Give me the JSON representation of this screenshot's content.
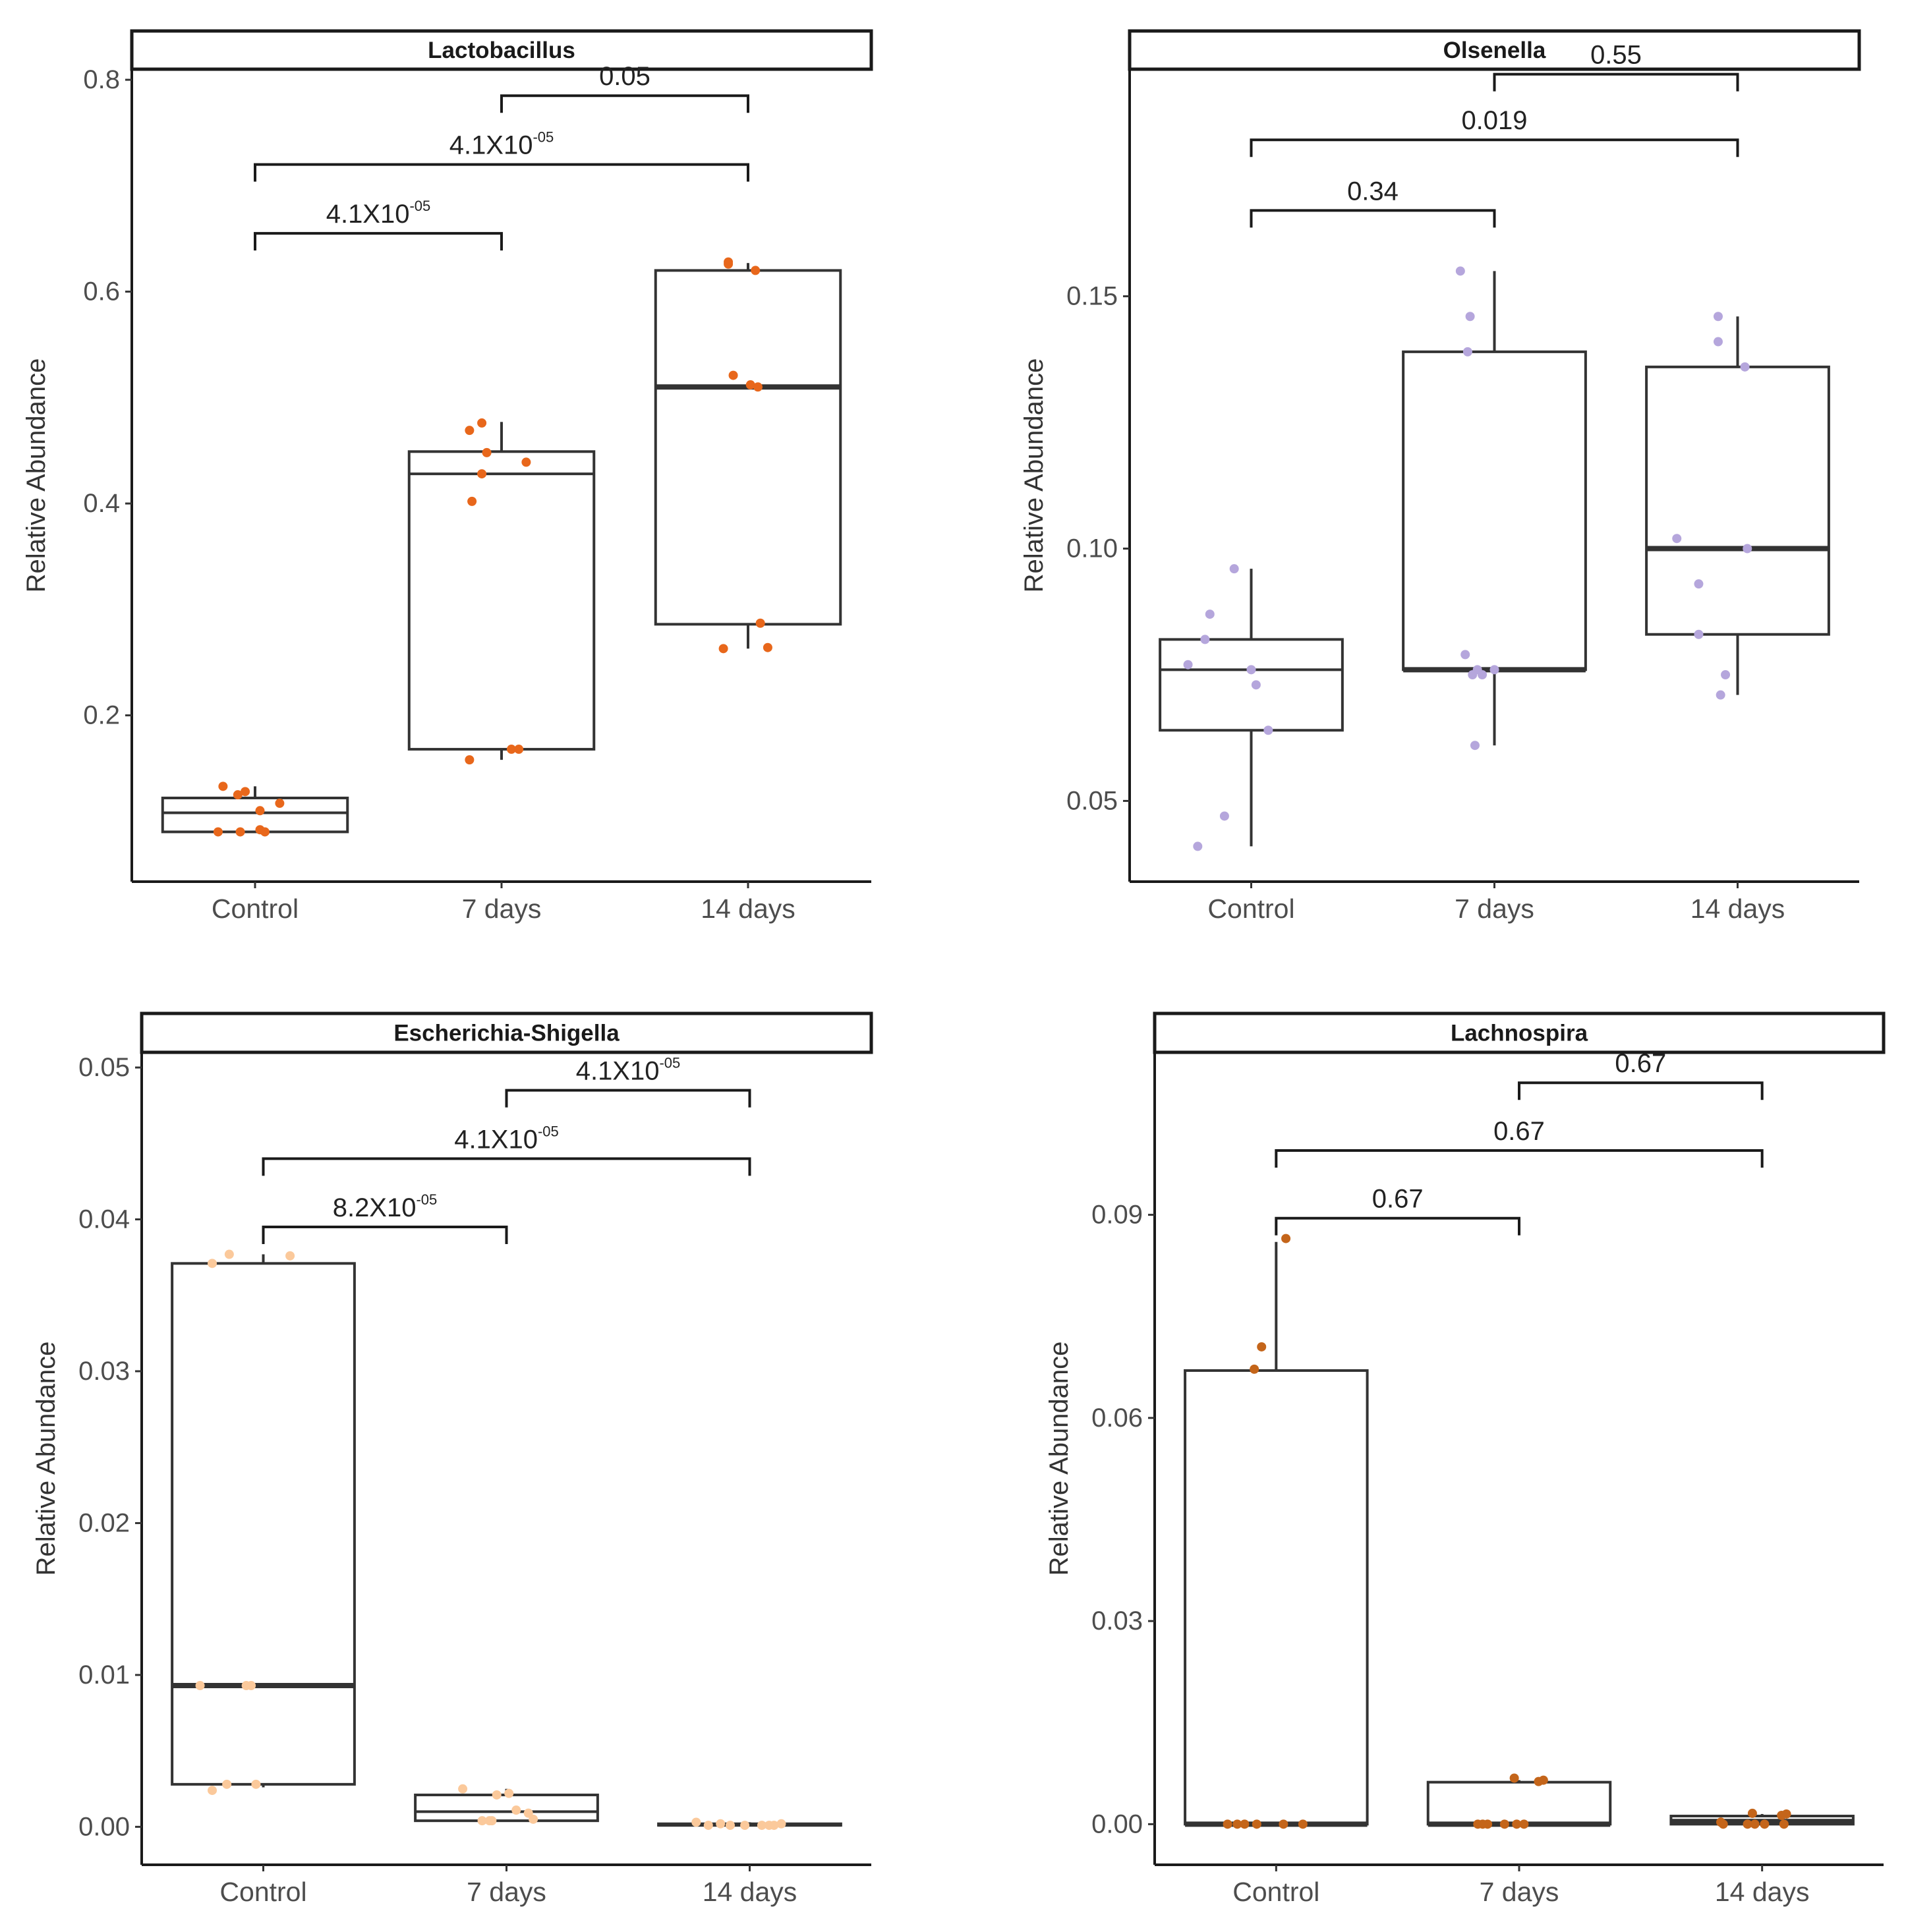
{
  "figure": {
    "background": "#ffffff"
  },
  "chart_data": [
    {
      "type": "box",
      "title": "Lactobacillus",
      "ylabel": "Relative Abundance",
      "xlabel": "",
      "categories": [
        "Control",
        "7 days",
        "14 days"
      ],
      "ylim": [
        0.043,
        0.81
      ],
      "yticks": [
        0.2,
        0.4,
        0.6,
        0.8
      ],
      "ytick_labels": [
        "0.2",
        "0.4",
        "0.6",
        "0.8"
      ],
      "point_color": "#e8671b",
      "boxes": [
        {
          "category": "Control",
          "q1": 0.09,
          "median": 0.108,
          "q3": 0.122,
          "whisker_low": 0.09,
          "whisker_high": 0.133,
          "median_bold": false
        },
        {
          "category": "7 days",
          "q1": 0.168,
          "median": 0.428,
          "q3": 0.449,
          "whisker_low": 0.158,
          "whisker_high": 0.477,
          "median_bold": false
        },
        {
          "category": "14 days",
          "q1": 0.286,
          "median": 0.51,
          "q3": 0.62,
          "whisker_low": 0.263,
          "whisker_high": 0.627,
          "median_bold": true
        }
      ],
      "points": [
        {
          "category": "Control",
          "values": [
            0.133,
            0.125,
            0.128,
            0.11,
            0.117,
            0.09,
            0.09,
            0.092,
            0.09
          ]
        },
        {
          "category": "7 days",
          "values": [
            0.469,
            0.476,
            0.448,
            0.439,
            0.428,
            0.402,
            0.158,
            0.168,
            0.168
          ]
        },
        {
          "category": "14 days",
          "values": [
            0.628,
            0.626,
            0.62,
            0.521,
            0.512,
            0.51,
            0.287,
            0.263,
            0.264
          ]
        }
      ],
      "jitter": [
        [
          -0.13,
          -0.07,
          -0.04,
          0.02,
          0.1,
          -0.15,
          -0.06,
          0.02,
          0.04
        ],
        [
          -0.13,
          -0.08,
          -0.06,
          0.1,
          -0.08,
          -0.12,
          -0.13,
          0.04,
          0.07
        ],
        [
          -0.08,
          -0.08,
          0.03,
          -0.06,
          0.01,
          0.04,
          0.05,
          -0.1,
          0.08
        ]
      ],
      "comparisons": [
        {
          "from": "Control",
          "to": "7 days",
          "y": 0.655,
          "label": "4.1X10",
          "exponent": "-05"
        },
        {
          "from": "Control",
          "to": "14 days",
          "y": 0.72,
          "label": "4.1X10",
          "exponent": "-05"
        },
        {
          "from": "7 days",
          "to": "14 days",
          "y": 0.785,
          "label": "0.05",
          "exponent": ""
        }
      ]
    },
    {
      "type": "box",
      "title": "Olsenella",
      "ylabel": "Relative Abundance",
      "xlabel": "",
      "categories": [
        "Control",
        "7 days",
        "14 days"
      ],
      "ylim": [
        0.034,
        0.195
      ],
      "yticks": [
        0.05,
        0.1,
        0.15
      ],
      "ytick_labels": [
        "0.05",
        "0.10",
        "0.15"
      ],
      "point_color": "#b5a6dc",
      "boxes": [
        {
          "category": "Control",
          "q1": 0.064,
          "median": 0.076,
          "q3": 0.082,
          "whisker_low": 0.041,
          "whisker_high": 0.096,
          "median_bold": false
        },
        {
          "category": "7 days",
          "q1": 0.076,
          "median": 0.076,
          "q3": 0.139,
          "whisker_low": 0.061,
          "whisker_high": 0.155,
          "median_bold": true
        },
        {
          "category": "14 days",
          "q1": 0.083,
          "median": 0.1,
          "q3": 0.136,
          "whisker_low": 0.071,
          "whisker_high": 0.146,
          "median_bold": true
        }
      ],
      "points": [
        {
          "category": "Control",
          "values": [
            0.096,
            0.087,
            0.082,
            0.077,
            0.076,
            0.073,
            0.064,
            0.047,
            0.041
          ]
        },
        {
          "category": "7 days",
          "values": [
            0.155,
            0.146,
            0.139,
            0.079,
            0.076,
            0.075,
            0.075,
            0.076,
            0.061
          ]
        },
        {
          "category": "14 days",
          "values": [
            0.146,
            0.141,
            0.136,
            0.102,
            0.1,
            0.093,
            0.083,
            0.075,
            0.071
          ]
        }
      ],
      "jitter": [
        [
          -0.07,
          -0.17,
          -0.19,
          -0.26,
          0.0,
          0.02,
          0.07,
          -0.11,
          -0.22
        ],
        [
          -0.14,
          -0.1,
          -0.11,
          -0.12,
          -0.07,
          -0.05,
          -0.09,
          0.0,
          -0.08
        ],
        [
          -0.08,
          -0.08,
          0.03,
          -0.25,
          0.04,
          -0.16,
          -0.16,
          -0.05,
          -0.07
        ]
      ],
      "comparisons": [
        {
          "from": "Control",
          "to": "7 days",
          "y": 0.167,
          "label": "0.34",
          "exponent": ""
        },
        {
          "from": "Control",
          "to": "14 days",
          "y": 0.181,
          "label": "0.019",
          "exponent": ""
        },
        {
          "from": "7 days",
          "to": "14 days",
          "y": 0.194,
          "label": "0.55",
          "exponent": ""
        }
      ]
    },
    {
      "type": "box",
      "title": "Escherichia-Shigella",
      "ylabel": "Relative Abundance",
      "xlabel": "",
      "categories": [
        "Control",
        "7 days",
        "14 days"
      ],
      "ylim": [
        -0.0025,
        0.051
      ],
      "yticks": [
        0.0,
        0.01,
        0.02,
        0.03,
        0.04,
        0.05
      ],
      "ytick_labels": [
        "0.00",
        "0.01",
        "0.02",
        "0.03",
        "0.04",
        "0.05"
      ],
      "point_color": "#fbc99b",
      "boxes": [
        {
          "category": "Control",
          "q1": 0.0028,
          "median": 0.0093,
          "q3": 0.0371,
          "whisker_low": 0.0026,
          "whisker_high": 0.0377,
          "median_bold": true
        },
        {
          "category": "7 days",
          "q1": 0.0004,
          "median": 0.001,
          "q3": 0.0021,
          "whisker_low": 0.0004,
          "whisker_high": 0.0025,
          "median_bold": false
        },
        {
          "category": "14 days",
          "q1": 0.0001,
          "median": 0.0001,
          "q3": 0.0002,
          "whisker_low": 0.0001,
          "whisker_high": 0.0003,
          "median_bold": false
        }
      ],
      "points": [
        {
          "category": "Control",
          "values": [
            0.0377,
            0.0371,
            0.0376,
            0.0093,
            0.0093,
            0.0093,
            0.0028,
            0.0024,
            0.0028
          ]
        },
        {
          "category": "7 days",
          "values": [
            0.0025,
            0.0021,
            0.0022,
            0.0011,
            0.0009,
            0.0005,
            0.0004,
            0.0004,
            0.0004
          ]
        },
        {
          "category": "14 days",
          "values": [
            0.0003,
            0.0001,
            0.0002,
            0.0001,
            0.0001,
            0.0001,
            0.0002,
            0.0001,
            0.0001
          ]
        }
      ],
      "jitter": [
        [
          -0.14,
          -0.21,
          0.11,
          -0.26,
          -0.07,
          -0.05,
          -0.15,
          -0.21,
          -0.03
        ],
        [
          -0.18,
          -0.04,
          0.01,
          0.04,
          0.09,
          0.11,
          -0.06,
          -0.07,
          -0.1
        ],
        [
          -0.22,
          -0.17,
          -0.12,
          -0.08,
          0.08,
          0.1,
          0.13,
          -0.02,
          0.05
        ]
      ],
      "comparisons": [
        {
          "from": "Control",
          "to": "7 days",
          "y": 0.0395,
          "label": "8.2X10",
          "exponent": "-05"
        },
        {
          "from": "Control",
          "to": "14 days",
          "y": 0.044,
          "label": "4.1X10",
          "exponent": "-05"
        },
        {
          "from": "7 days",
          "to": "14 days",
          "y": 0.0485,
          "label": "4.1X10",
          "exponent": "-05"
        }
      ]
    },
    {
      "type": "box",
      "title": "Lachnospira",
      "ylabel": "Relative Abundance",
      "xlabel": "",
      "categories": [
        "Control",
        "7 days",
        "14 days"
      ],
      "ylim": [
        -0.006,
        0.114
      ],
      "yticks": [
        0.0,
        0.03,
        0.06,
        0.09
      ],
      "ytick_labels": [
        "0.00",
        "0.03",
        "0.06",
        "0.09"
      ],
      "point_color": "#c4651a",
      "boxes": [
        {
          "category": "Control",
          "q1": 0.0,
          "median": 0.0,
          "q3": 0.067,
          "whisker_low": 0.0,
          "whisker_high": 0.086,
          "median_bold": true
        },
        {
          "category": "7 days",
          "q1": 0.0,
          "median": 0.0,
          "q3": 0.0062,
          "whisker_low": 0.0,
          "whisker_high": 0.0065,
          "median_bold": true
        },
        {
          "category": "14 days",
          "q1": 0.0,
          "median": 0.0004,
          "q3": 0.0012,
          "whisker_low": 0.0,
          "whisker_high": 0.0015,
          "median_bold": true
        }
      ],
      "points": [
        {
          "category": "Control",
          "values": [
            0.0865,
            0.0705,
            0.0672,
            0.0,
            0.0,
            0.0,
            0.0,
            0.0,
            0.0
          ]
        },
        {
          "category": "7 days",
          "values": [
            0.0068,
            0.0065,
            0.0063,
            0.0,
            0.0,
            0.0,
            0.0,
            0.0,
            0.0
          ]
        },
        {
          "category": "14 days",
          "values": [
            0.0016,
            0.0015,
            0.0013,
            0.0003,
            0.0,
            0.0,
            0.0,
            0.0,
            0.0
          ]
        }
      ],
      "jitter": [
        [
          0.04,
          -0.06,
          -0.09,
          -0.2,
          -0.16,
          -0.13,
          -0.08,
          0.03,
          0.11
        ],
        [
          -0.02,
          0.1,
          0.08,
          -0.17,
          -0.13,
          -0.06,
          -0.01,
          0.02,
          -0.15
        ],
        [
          -0.04,
          0.1,
          0.08,
          -0.17,
          -0.16,
          -0.06,
          -0.03,
          0.01,
          0.09
        ]
      ],
      "comparisons": [
        {
          "from": "Control",
          "to": "7 days",
          "y": 0.0895,
          "label": "0.67",
          "exponent": ""
        },
        {
          "from": "Control",
          "to": "14 days",
          "y": 0.0995,
          "label": "0.67",
          "exponent": ""
        },
        {
          "from": "7 days",
          "to": "14 days",
          "y": 0.1095,
          "label": "0.67",
          "exponent": ""
        }
      ]
    }
  ]
}
